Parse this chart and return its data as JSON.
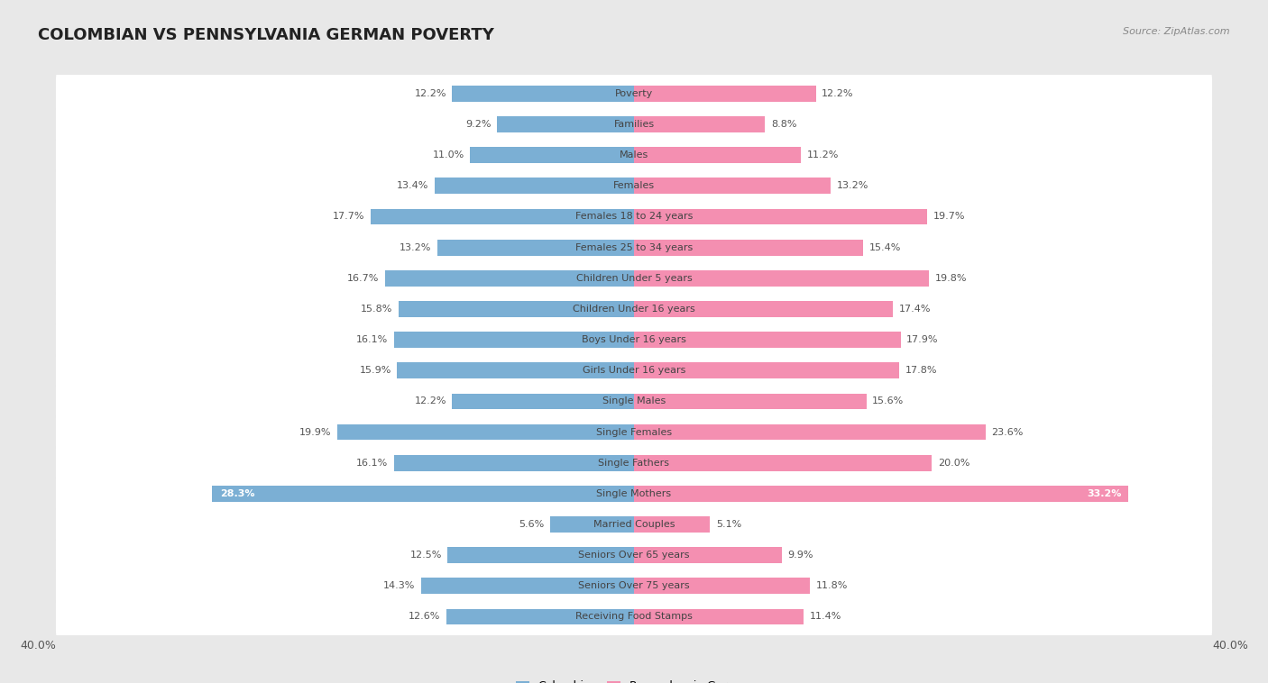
{
  "title": "COLOMBIAN VS PENNSYLVANIA GERMAN POVERTY",
  "source": "Source: ZipAtlas.com",
  "categories": [
    "Poverty",
    "Families",
    "Males",
    "Females",
    "Females 18 to 24 years",
    "Females 25 to 34 years",
    "Children Under 5 years",
    "Children Under 16 years",
    "Boys Under 16 years",
    "Girls Under 16 years",
    "Single Males",
    "Single Females",
    "Single Fathers",
    "Single Mothers",
    "Married Couples",
    "Seniors Over 65 years",
    "Seniors Over 75 years",
    "Receiving Food Stamps"
  ],
  "colombian": [
    12.2,
    9.2,
    11.0,
    13.4,
    17.7,
    13.2,
    16.7,
    15.8,
    16.1,
    15.9,
    12.2,
    19.9,
    16.1,
    28.3,
    5.6,
    12.5,
    14.3,
    12.6
  ],
  "penn_german": [
    12.2,
    8.8,
    11.2,
    13.2,
    19.7,
    15.4,
    19.8,
    17.4,
    17.9,
    17.8,
    15.6,
    23.6,
    20.0,
    33.2,
    5.1,
    9.9,
    11.8,
    11.4
  ],
  "colombian_color": "#7bafd4",
  "penn_german_color": "#f48fb1",
  "background_color": "#e8e8e8",
  "row_color": "#ffffff",
  "axis_max": 40.0,
  "legend_labels": [
    "Colombian",
    "Pennsylvania German"
  ],
  "bar_height": 0.52,
  "value_label_color": "#555555",
  "value_label_color_inside": "#ffffff",
  "category_label_color": "#444444",
  "title_fontsize": 13,
  "label_fontsize": 8.0,
  "cat_fontsize": 8.0,
  "axis_fontsize": 9
}
